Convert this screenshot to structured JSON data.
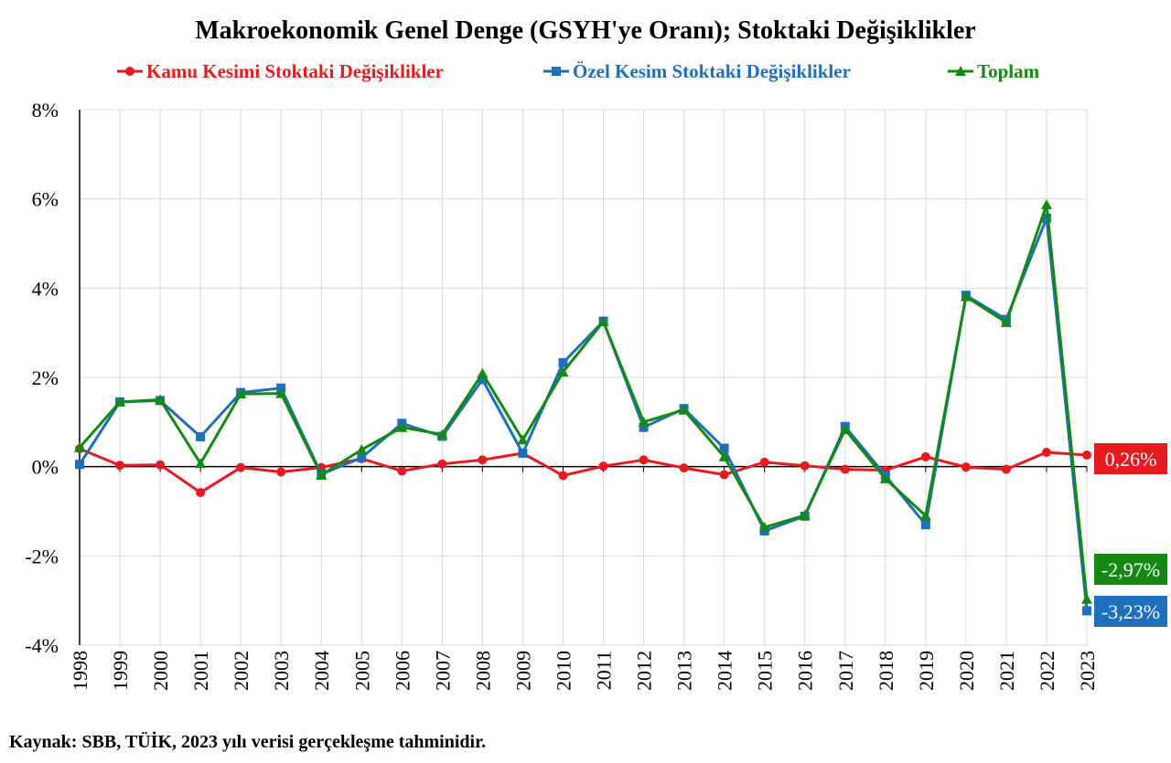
{
  "colors": {
    "kamu": "#e8191f",
    "ozel": "#1e6fbe",
    "toplam": "#158a12",
    "grid": "#d9d9d9",
    "axis": "#000000"
  },
  "chart_data": {
    "type": "line",
    "title": "Makroekonomik Genel Denge (GSYH'ye Oranı); Stoktaki Değişiklikler",
    "xlabel": "",
    "ylabel": "",
    "ylim": [
      -4,
      8
    ],
    "ytick_step": 2,
    "grid": true,
    "legend_position": "top",
    "categories": [
      "1998",
      "1999",
      "2000",
      "2001",
      "2002",
      "2003",
      "2004",
      "2005",
      "2006",
      "2007",
      "2008",
      "2009",
      "2010",
      "2011",
      "2012",
      "2013",
      "2014",
      "2015",
      "2016",
      "2017",
      "2018",
      "2019",
      "2020",
      "2021",
      "2022",
      "2023"
    ],
    "yticklabels": [
      "8%",
      "6%",
      "4%",
      "2%",
      "0%",
      "-2%",
      "-4%"
    ],
    "series": [
      {
        "key": "kamu",
        "name": "Kamu Kesimi Stoktaki Değişiklikler",
        "marker": "circle",
        "values": [
          0.4,
          0.03,
          0.04,
          -0.58,
          -0.02,
          -0.12,
          -0.02,
          0.18,
          -0.1,
          0.06,
          0.15,
          0.3,
          -0.2,
          0.01,
          0.15,
          -0.03,
          -0.18,
          0.1,
          0.02,
          -0.06,
          -0.08,
          0.22,
          -0.01,
          -0.06,
          0.32,
          0.26
        ],
        "end_label": "0,26%"
      },
      {
        "key": "ozel",
        "name": "Özel Kesim Stoktaki Değişiklikler",
        "marker": "square",
        "values": [
          0.05,
          1.45,
          1.48,
          0.67,
          1.66,
          1.76,
          -0.17,
          0.2,
          0.97,
          0.68,
          1.95,
          0.3,
          2.33,
          3.26,
          0.88,
          1.3,
          0.41,
          -1.44,
          -1.11,
          0.9,
          -0.2,
          -1.3,
          3.84,
          3.3,
          5.57,
          -3.23
        ],
        "end_label": "-3,23%"
      },
      {
        "key": "toplam",
        "name": "Toplam",
        "marker": "triangle",
        "values": [
          0.43,
          1.45,
          1.5,
          0.07,
          1.63,
          1.64,
          -0.19,
          0.38,
          0.88,
          0.72,
          2.09,
          0.6,
          2.12,
          3.25,
          1.0,
          1.27,
          0.22,
          -1.36,
          -1.09,
          0.83,
          -0.27,
          -1.1,
          3.81,
          3.23,
          5.87,
          -2.97
        ],
        "end_label": "-2,97%"
      }
    ]
  },
  "source_text": "Kaynak: SBB, TÜİK, 2023 yılı verisi gerçekleşme tahminidir."
}
